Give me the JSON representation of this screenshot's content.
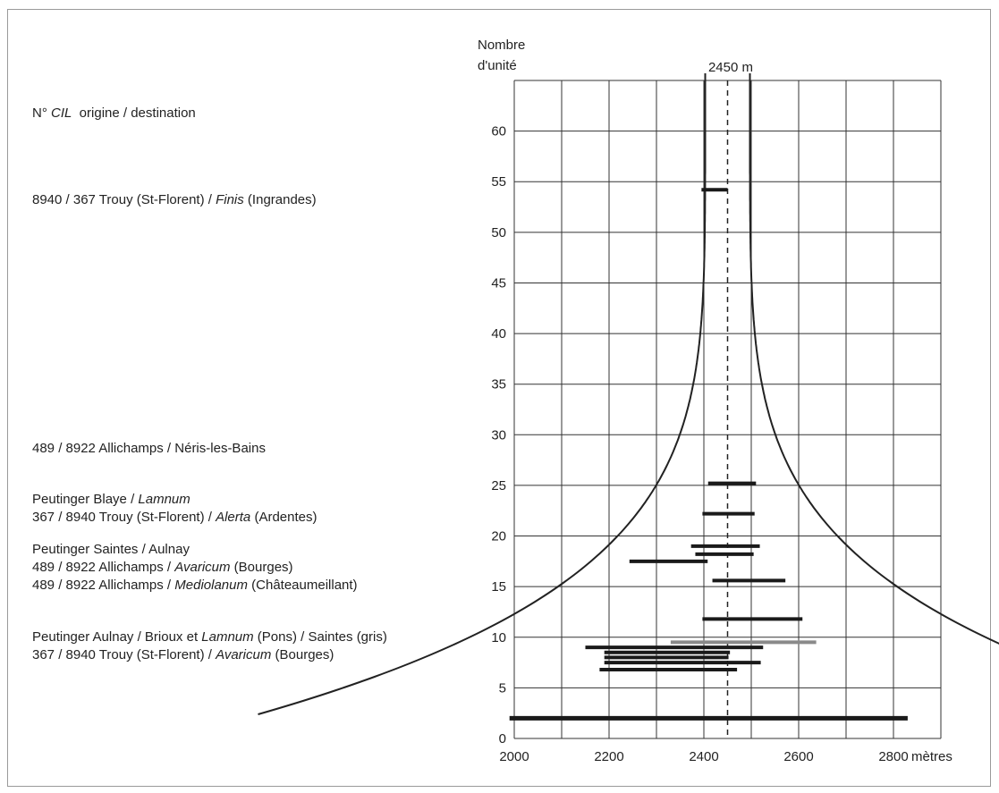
{
  "chart_data": {
    "type": "bar",
    "y_axis_title": "Nombre d'unité",
    "x_unit": "mètres",
    "x_ticks": [
      2000,
      2200,
      2400,
      2600,
      2800
    ],
    "y_ticks": [
      0,
      5,
      10,
      15,
      20,
      25,
      30,
      35,
      40,
      45,
      50,
      55,
      60
    ],
    "xlim": [
      2000,
      2800
    ],
    "ylim": [
      0,
      65
    ],
    "grid": true,
    "reference_line": {
      "x": 2450,
      "label": "2450 m",
      "style": "dashed"
    },
    "envelope_curve": true,
    "header": {
      "prefix": "N° ",
      "italic": "CIL",
      "suffix": "  origine / destination"
    },
    "groups": [
      {
        "lines": [
          [
            {
              "t": "8940 / 367 Trouy (St-Florent) / "
            },
            {
              "t": "Finis",
              "i": true
            },
            {
              "t": " (Ingrandes)"
            }
          ]
        ]
      },
      {
        "lines": [
          [
            {
              "t": "489 / 8922 Allichamps / Néris-les-Bains"
            }
          ]
        ]
      },
      {
        "lines": [
          [
            {
              "t": "Peutinger Blaye / "
            },
            {
              "t": "Lamnum",
              "i": true
            }
          ],
          [
            {
              "t": "367 / 8940 Trouy (St-Florent) / "
            },
            {
              "t": "Alerta",
              "i": true
            },
            {
              "t": " (Ardentes)"
            }
          ]
        ]
      },
      {
        "lines": [
          [
            {
              "t": "Peutinger Saintes / Aulnay"
            }
          ],
          [
            {
              "t": "489 / 8922 Allichamps / "
            },
            {
              "t": "Avaricum",
              "i": true
            },
            {
              "t": " (Bourges)"
            }
          ],
          [
            {
              "t": "489 / 8922 Allichamps / "
            },
            {
              "t": "Mediolanum",
              "i": true
            },
            {
              "t": " (Châteaumeillant)"
            }
          ]
        ]
      },
      {
        "lines": [
          [
            {
              "t": "Peutinger Aulnay / Brioux et "
            },
            {
              "t": "Lamnum",
              "i": true
            },
            {
              "t": " (Pons) / Saintes (gris)"
            }
          ],
          [
            {
              "t": "367 / 8940 Trouy (St-Florent) / "
            },
            {
              "t": "Avaricum",
              "i": true
            },
            {
              "t": " (Bourges)"
            }
          ]
        ]
      }
    ],
    "ranges": [
      {
        "y": 54.2,
        "x0": 2395,
        "x1": 2450,
        "color": "black"
      },
      {
        "y": 25.2,
        "x0": 2409,
        "x1": 2510,
        "color": "black"
      },
      {
        "y": 22.2,
        "x0": 2397,
        "x1": 2507,
        "color": "black"
      },
      {
        "y": 19.0,
        "x0": 2373,
        "x1": 2518,
        "color": "black"
      },
      {
        "y": 18.2,
        "x0": 2382,
        "x1": 2505,
        "color": "black"
      },
      {
        "y": 17.5,
        "x0": 2243,
        "x1": 2408,
        "color": "black"
      },
      {
        "y": 15.6,
        "x0": 2418,
        "x1": 2572,
        "color": "black"
      },
      {
        "y": 11.8,
        "x0": 2397,
        "x1": 2608,
        "color": "black"
      },
      {
        "y": 9.5,
        "x0": 2330,
        "x1": 2637,
        "color": "gray"
      },
      {
        "y": 9.0,
        "x0": 2150,
        "x1": 2525,
        "color": "black"
      },
      {
        "y": 8.5,
        "x0": 2190,
        "x1": 2455,
        "color": "black"
      },
      {
        "y": 8.0,
        "x0": 2190,
        "x1": 2452,
        "color": "black"
      },
      {
        "y": 7.5,
        "x0": 2190,
        "x1": 2520,
        "color": "black"
      },
      {
        "y": 6.8,
        "x0": 2180,
        "x1": 2470,
        "color": "black"
      },
      {
        "y": 2.0,
        "x0": 1990,
        "x1": 2830,
        "color": "black"
      }
    ]
  }
}
